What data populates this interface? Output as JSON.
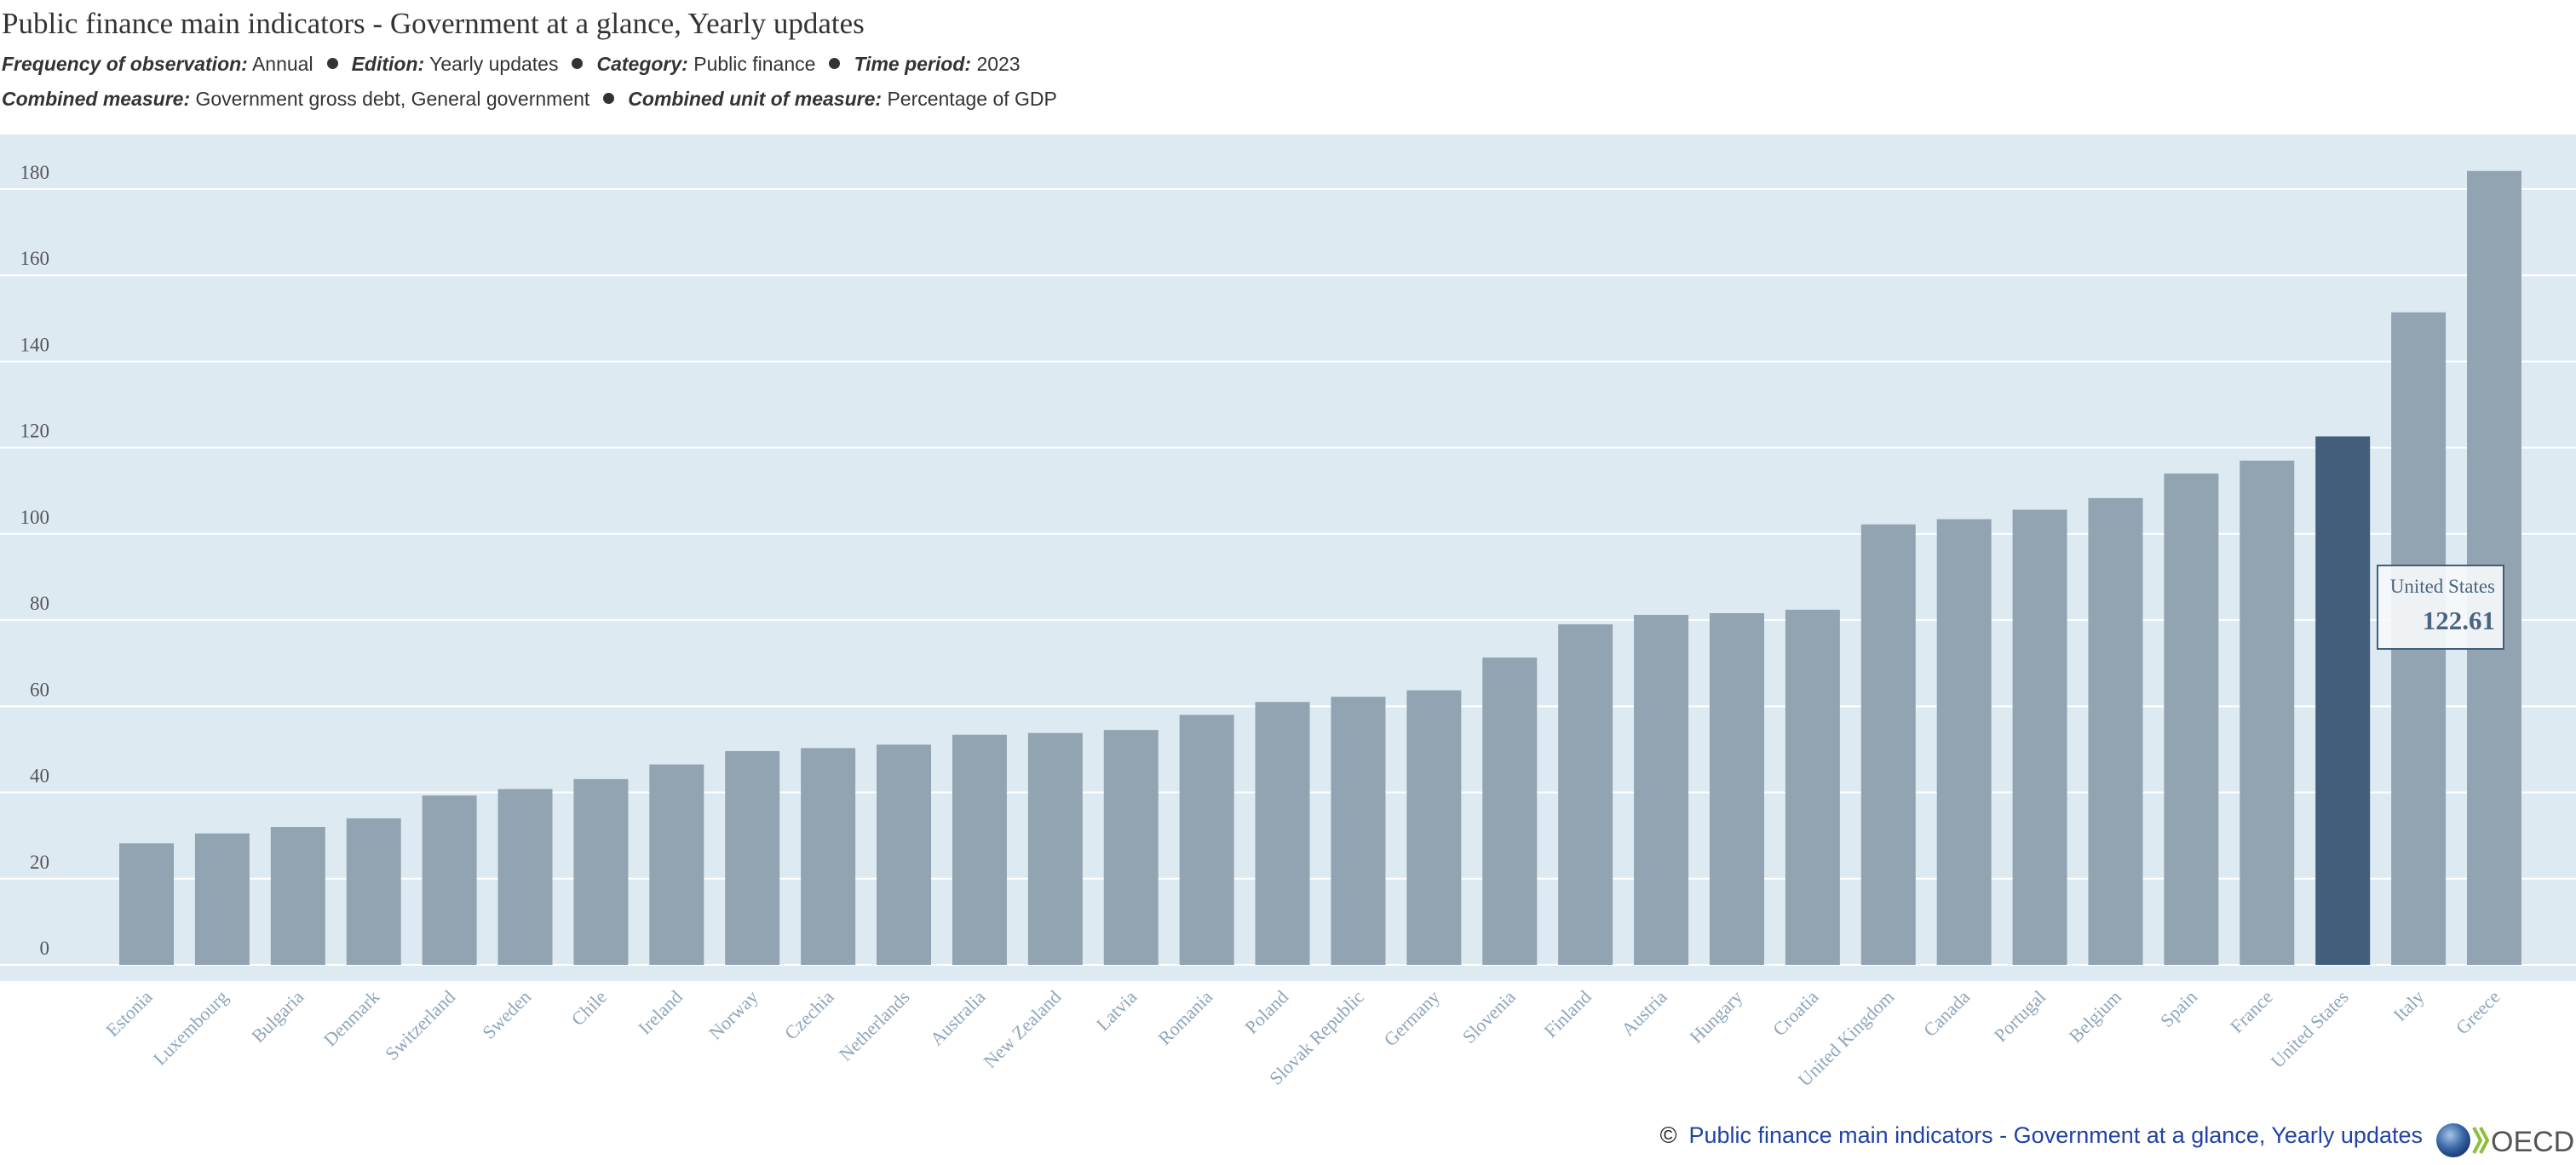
{
  "header": {
    "title": "Public finance main indicators - Government at a glance, Yearly updates",
    "meta_line1": [
      {
        "label": "Frequency of observation:",
        "value": "Annual"
      },
      {
        "label": "Edition:",
        "value": "Yearly updates"
      },
      {
        "label": "Category:",
        "value": "Public finance"
      },
      {
        "label": "Time period:",
        "value": "2023"
      }
    ],
    "meta_line2": [
      {
        "label": "Combined measure:",
        "value": "Government gross debt, General government"
      },
      {
        "label": "Combined unit of measure:",
        "value": "Percentage of GDP"
      }
    ]
  },
  "chart_data": {
    "type": "bar",
    "title": "",
    "xlabel": "",
    "ylabel": "",
    "ylim": [
      0,
      190
    ],
    "yticks": [
      0,
      20,
      40,
      60,
      80,
      100,
      120,
      140,
      160,
      180
    ],
    "grid": true,
    "categories": [
      "Estonia",
      "Luxembourg",
      "Bulgaria",
      "Denmark",
      "Switzerland",
      "Sweden",
      "Chile",
      "Ireland",
      "Norway",
      "Czechia",
      "Netherlands",
      "Australia",
      "New Zealand",
      "Latvia",
      "Romania",
      "Poland",
      "Slovak Republic",
      "Germany",
      "Slovenia",
      "Finland",
      "Austria",
      "Hungary",
      "Croatia",
      "United Kingdom",
      "Canada",
      "Portugal",
      "Belgium",
      "Spain",
      "France",
      "United States",
      "Italy",
      "Greece"
    ],
    "values": [
      28.2,
      30.5,
      32.0,
      34.0,
      39.3,
      40.8,
      43.1,
      46.5,
      49.6,
      50.3,
      51.1,
      53.4,
      53.8,
      54.5,
      58.0,
      61.0,
      62.2,
      63.7,
      71.3,
      79.0,
      81.2,
      81.6,
      82.4,
      102.2,
      103.4,
      105.6,
      108.3,
      114.0,
      117.0,
      122.61,
      151.4,
      184.2
    ],
    "highlighted": "United States",
    "colors": {
      "bar": "#92a4b1",
      "highlight": "#415e7a",
      "plot_bg": "#deeaf2",
      "grid": "#ffffff",
      "label": "#8fa5ba"
    },
    "tooltip": {
      "label": "United States",
      "value": "122.61"
    }
  },
  "footer": {
    "copyright_symbol": "©",
    "source_link": "Public finance main indicators - Government at a glance, Yearly updates",
    "logo_text": "OECD"
  }
}
